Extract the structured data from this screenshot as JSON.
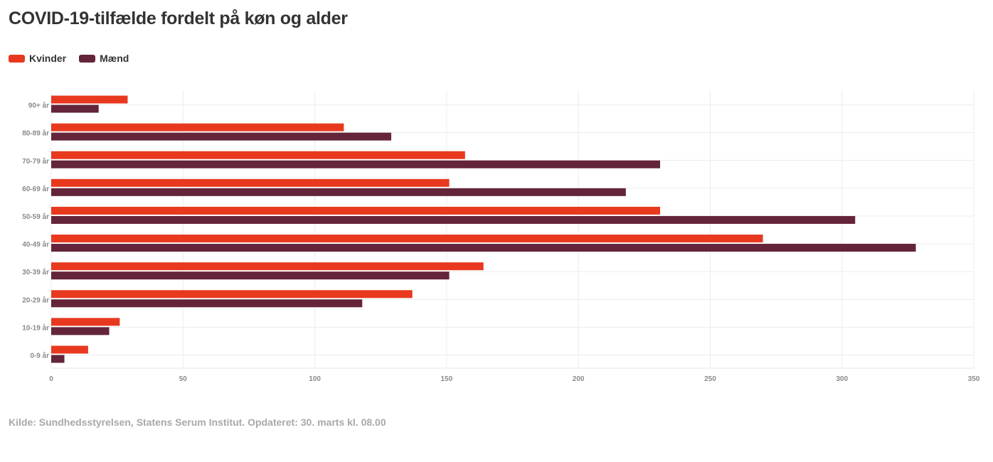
{
  "title": "COVID-19-tilfælde fordelt på køn og alder",
  "legend": [
    {
      "label": "Kvinder",
      "color": "#e8391f"
    },
    {
      "label": "Mænd",
      "color": "#64243a"
    }
  ],
  "source": "Kilde: Sundhedsstyrelsen, Statens Serum Institut. Opdateret: 30. marts kl. 08.00",
  "chart_data": {
    "type": "bar",
    "orientation": "horizontal",
    "title": "COVID-19-tilfælde fordelt på køn og alder",
    "categories": [
      "90+ år",
      "80-89 år",
      "70-79 år",
      "60-69 år",
      "50-59 år",
      "40-49 år",
      "30-39 år",
      "20-29 år",
      "10-19 år",
      "0-9 år"
    ],
    "series": [
      {
        "name": "Kvinder",
        "color": "#e8391f",
        "values": [
          29,
          111,
          157,
          151,
          231,
          270,
          164,
          137,
          26,
          14
        ]
      },
      {
        "name": "Mænd",
        "color": "#64243a",
        "values": [
          18,
          129,
          231,
          218,
          305,
          328,
          151,
          118,
          22,
          5
        ]
      }
    ],
    "xlim": [
      0,
      350
    ],
    "xticks": [
      "0",
      "50",
      "100",
      "150",
      "200",
      "250",
      "300",
      "350"
    ],
    "grid": true,
    "legend_position": "top-left"
  }
}
